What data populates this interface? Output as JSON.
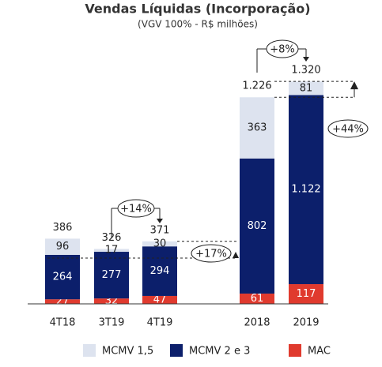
{
  "chart_data": {
    "type": "stacked_bar",
    "title": "Vendas Líquidas (Incorporação)",
    "subtitle": "(VGV 100% - R$ milhões)",
    "categories": [
      "4T18",
      "3T19",
      "4T19",
      null,
      "2018",
      "2019"
    ],
    "series": [
      {
        "name": "MCMV 1,5",
        "color": "#dde3ef",
        "values": [
          96,
          17,
          30,
          null,
          363,
          81
        ]
      },
      {
        "name": "MCMV 2 e 3",
        "color": "#0c1f6b",
        "values": [
          264,
          277,
          294,
          null,
          802,
          1122
        ],
        "value_labels": [
          "264",
          "277",
          "294",
          null,
          "802",
          "1.122"
        ]
      },
      {
        "name": "MAC",
        "color": "#e03a2e",
        "values": [
          27,
          32,
          47,
          null,
          61,
          117
        ]
      }
    ],
    "totals": {
      "values": [
        386,
        326,
        371,
        null,
        1226,
        1320
      ],
      "value_labels": [
        "386",
        "326",
        "371",
        null,
        "1.226",
        "1.320"
      ]
    },
    "annotations": [
      "+14%",
      "+8%",
      "+17%",
      "+44%"
    ]
  }
}
